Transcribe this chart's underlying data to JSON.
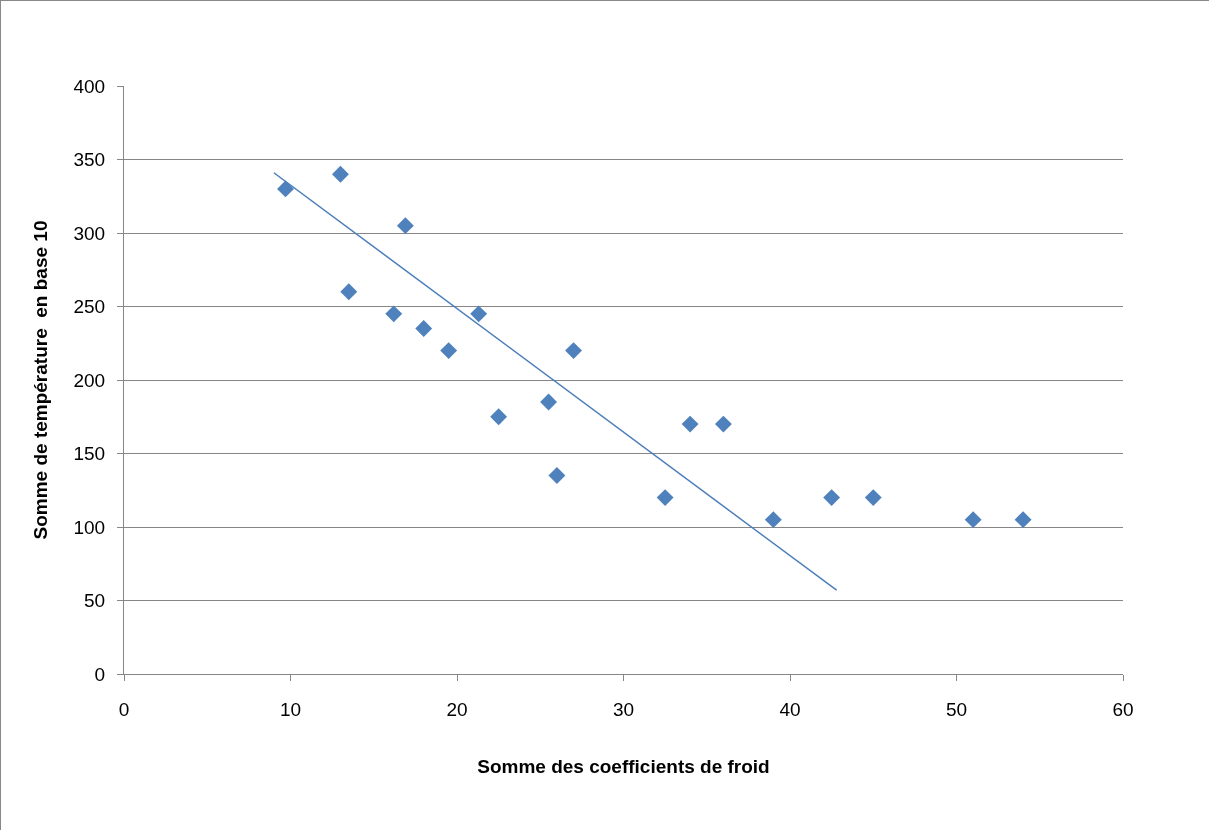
{
  "chart_data": {
    "type": "scatter",
    "xlabel": "Somme des coefficients de froid",
    "ylabel": "Somme de température  en base 10",
    "xlim": [
      0,
      60
    ],
    "xticks": [
      0,
      10,
      20,
      30,
      40,
      50,
      60
    ],
    "ylim": [
      0,
      400
    ],
    "yticks": [
      0,
      50,
      100,
      150,
      200,
      250,
      300,
      350,
      400
    ],
    "grid": "y",
    "marker": "diamond",
    "series": [
      {
        "color": "#4f81bd",
        "x": [
          9.7,
          13,
          16.9,
          13.5,
          16.2,
          18,
          19.5,
          21.3,
          22.5,
          25.5,
          26,
          27,
          32.5,
          34,
          36,
          39,
          42.5,
          45,
          51,
          54
        ],
        "values": [
          330,
          340,
          305,
          260,
          245,
          235,
          220,
          245,
          175,
          185,
          135,
          220,
          120,
          170,
          170,
          105,
          120,
          120,
          105,
          105
        ]
      },
      {
        "type": "line",
        "color": "#4a7ebb",
        "marker": "none",
        "line_style": "solid",
        "x": [
          9,
          42.8
        ],
        "values": [
          341,
          57
        ]
      }
    ]
  }
}
